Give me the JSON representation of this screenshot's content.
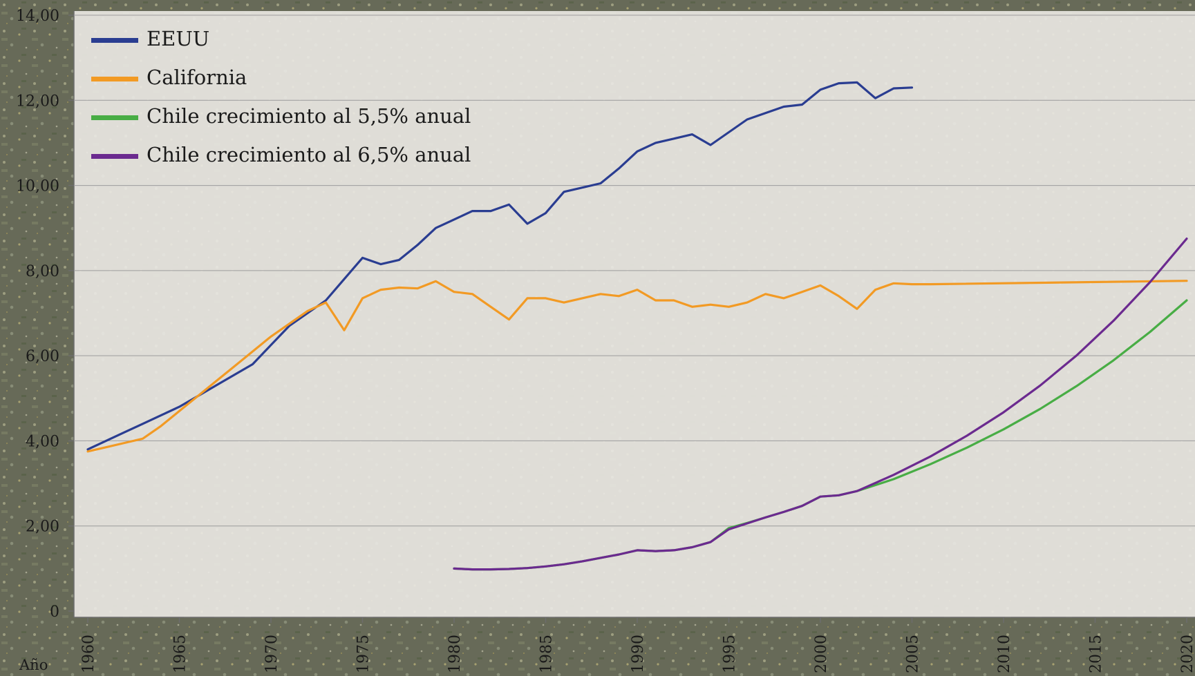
{
  "chart_data": {
    "type": "line",
    "title": "",
    "xlabel": "Año",
    "ylabel": "",
    "xlim": [
      1960,
      2020
    ],
    "ylim": [
      0,
      14
    ],
    "grid": true,
    "legend_position": "top-left",
    "y_ticks": [
      "0",
      "2,00",
      "4,00",
      "6,00",
      "8,00",
      "10,00",
      "12,00",
      "14,00"
    ],
    "y_tick_values": [
      0,
      2,
      4,
      6,
      8,
      10,
      12,
      14
    ],
    "x_ticks": [
      "1960",
      "1965",
      "1970",
      "1975",
      "1980",
      "1985",
      "1990",
      "1995",
      "2000",
      "2005",
      "2010",
      "2015",
      "2020"
    ],
    "x_tick_values": [
      1960,
      1965,
      1970,
      1975,
      1980,
      1985,
      1990,
      1995,
      2000,
      2005,
      2010,
      2015,
      2020
    ],
    "series": [
      {
        "name": "EEUU",
        "color": "#2a3d91",
        "x": [
          1960,
          1961,
          1962,
          1963,
          1964,
          1965,
          1966,
          1967,
          1968,
          1969,
          1970,
          1971,
          1972,
          1973,
          1974,
          1975,
          1976,
          1977,
          1978,
          1979,
          1980,
          1981,
          1982,
          1983,
          1984,
          1985,
          1986,
          1987,
          1988,
          1989,
          1990,
          1991,
          1992,
          1993,
          1994,
          1995,
          1996,
          1997,
          1998,
          1999,
          2000,
          2001,
          2002,
          2003,
          2004,
          2005
        ],
        "y": [
          3.8,
          4.0,
          4.2,
          4.4,
          4.6,
          4.8,
          5.05,
          5.3,
          5.55,
          5.8,
          6.25,
          6.7,
          7.0,
          7.3,
          7.8,
          8.3,
          8.15,
          8.25,
          8.6,
          9.0,
          9.2,
          9.4,
          9.4,
          9.55,
          9.1,
          9.35,
          9.85,
          9.95,
          10.05,
          10.4,
          10.8,
          11.0,
          11.1,
          11.2,
          10.95,
          11.25,
          11.55,
          11.7,
          11.85,
          11.9,
          12.25,
          12.4,
          12.42,
          12.05,
          12.28,
          12.3
        ]
      },
      {
        "name": "California",
        "color": "#f29a24",
        "x": [
          1960,
          1961,
          1962,
          1963,
          1964,
          1965,
          1966,
          1967,
          1968,
          1969,
          1970,
          1971,
          1972,
          1973,
          1974,
          1975,
          1976,
          1977,
          1978,
          1979,
          1980,
          1981,
          1982,
          1983,
          1984,
          1985,
          1986,
          1987,
          1988,
          1989,
          1990,
          1991,
          1992,
          1993,
          1994,
          1995,
          1996,
          1997,
          1998,
          1999,
          2000,
          2001,
          2002,
          2003,
          2004,
          2005,
          2006,
          2020
        ],
        "y": [
          3.75,
          3.85,
          3.95,
          4.05,
          4.35,
          4.7,
          5.05,
          5.4,
          5.75,
          6.1,
          6.45,
          6.75,
          7.05,
          7.25,
          6.6,
          7.35,
          7.55,
          7.6,
          7.58,
          7.75,
          7.5,
          7.45,
          7.15,
          6.85,
          7.35,
          7.35,
          7.25,
          7.35,
          7.45,
          7.4,
          7.55,
          7.3,
          7.3,
          7.15,
          7.2,
          7.15,
          7.25,
          7.45,
          7.35,
          7.5,
          7.65,
          7.4,
          7.1,
          7.55,
          7.7,
          7.68,
          7.68,
          7.76
        ]
      },
      {
        "name": "Chile crecimiento al 5,5% anual",
        "color": "#48ad45",
        "x": [
          1980,
          1981,
          1982,
          1983,
          1984,
          1985,
          1986,
          1987,
          1988,
          1989,
          1990,
          1991,
          1992,
          1993,
          1994,
          1995,
          1996,
          1997,
          1998,
          1999,
          2000,
          2001,
          2002,
          2004,
          2006,
          2008,
          2010,
          2012,
          2014,
          2016,
          2018,
          2020
        ],
        "y": [
          1.0,
          0.98,
          0.98,
          0.99,
          1.01,
          1.05,
          1.1,
          1.17,
          1.25,
          1.33,
          1.43,
          1.41,
          1.43,
          1.5,
          1.62,
          1.95,
          2.07,
          2.2,
          2.33,
          2.47,
          2.69,
          2.72,
          2.82,
          3.1,
          3.45,
          3.84,
          4.27,
          4.75,
          5.29,
          5.89,
          6.56,
          7.3
        ]
      },
      {
        "name": "Chile crecimiento al 6,5% anual",
        "color": "#6b2a8f",
        "x": [
          1980,
          1981,
          1982,
          1983,
          1984,
          1985,
          1986,
          1987,
          1988,
          1989,
          1990,
          1991,
          1992,
          1993,
          1994,
          1995,
          1996,
          1997,
          1998,
          1999,
          2000,
          2001,
          2002,
          2004,
          2006,
          2008,
          2010,
          2012,
          2014,
          2016,
          2018,
          2020
        ],
        "y": [
          1.0,
          0.98,
          0.98,
          0.99,
          1.01,
          1.05,
          1.1,
          1.17,
          1.25,
          1.33,
          1.43,
          1.41,
          1.43,
          1.5,
          1.62,
          1.92,
          2.06,
          2.2,
          2.33,
          2.47,
          2.69,
          2.72,
          2.82,
          3.2,
          3.63,
          4.12,
          4.67,
          5.3,
          6.01,
          6.82,
          7.73,
          8.75
        ]
      }
    ]
  }
}
